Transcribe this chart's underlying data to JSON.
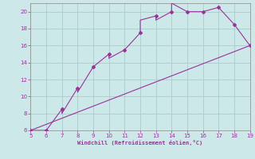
{
  "xlabel": "Windchill (Refroidissement éolien,°C)",
  "line_color": "#993399",
  "bg_color": "#cce8e8",
  "grid_color": "#b0d0d0",
  "xlim": [
    5,
    19
  ],
  "ylim": [
    6,
    21
  ],
  "xticks": [
    5,
    6,
    7,
    8,
    9,
    10,
    11,
    12,
    13,
    14,
    15,
    16,
    17,
    18,
    19
  ],
  "yticks": [
    6,
    8,
    10,
    12,
    14,
    16,
    18,
    20
  ],
  "curve_x": [
    5,
    6,
    6,
    7,
    7,
    8,
    8,
    9,
    10,
    10,
    11,
    12,
    12,
    13,
    13,
    14,
    14,
    15,
    15,
    16,
    16,
    17,
    18,
    19
  ],
  "curve_y": [
    6,
    6,
    6,
    8.5,
    8,
    11,
    10.5,
    13.5,
    15,
    14.5,
    15.5,
    17.5,
    19,
    19.5,
    19,
    20,
    21,
    20,
    20,
    20,
    20,
    20.5,
    18.5,
    16
  ],
  "line_x": [
    5,
    19
  ],
  "line_y": [
    6,
    16
  ],
  "marker_x": [
    5,
    6,
    7,
    8,
    9,
    10,
    11,
    12,
    13,
    14,
    15,
    16,
    17,
    18,
    19
  ],
  "marker_y": [
    6,
    6,
    8.5,
    11,
    13.5,
    15,
    15.5,
    17.5,
    19.5,
    20,
    20,
    20,
    20.5,
    18.5,
    16
  ]
}
